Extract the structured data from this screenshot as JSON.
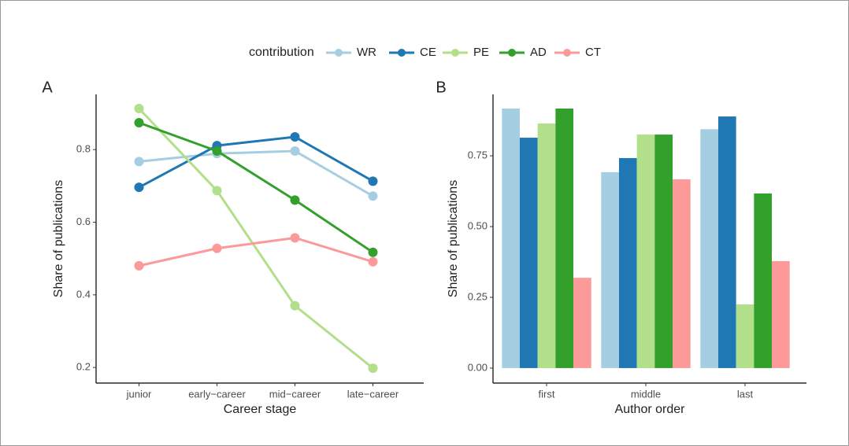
{
  "legend": {
    "title": "contribution"
  },
  "chart_data": [
    {
      "type": "line",
      "panel": "A",
      "xlabel": "Career stage",
      "ylabel": "Share of publications",
      "categories": [
        "junior",
        "early−career",
        "mid−career",
        "late−career"
      ],
      "series": [
        {
          "name": "WR",
          "color": "#a6cee3",
          "values": [
            0.767,
            0.789,
            0.796,
            0.672
          ]
        },
        {
          "name": "CE",
          "color": "#1f78b4",
          "values": [
            0.696,
            0.811,
            0.835,
            0.713
          ]
        },
        {
          "name": "PE",
          "color": "#b2df8a",
          "values": [
            0.913,
            0.687,
            0.37,
            0.198
          ]
        },
        {
          "name": "AD",
          "color": "#33a02c",
          "values": [
            0.874,
            0.796,
            0.661,
            0.517
          ]
        },
        {
          "name": "CT",
          "color": "#fb9a99",
          "values": [
            0.48,
            0.528,
            0.557,
            0.491
          ]
        }
      ],
      "ylim": [
        0.157,
        0.952
      ],
      "yticks": [
        0.2,
        0.4,
        0.6,
        0.8
      ]
    },
    {
      "type": "bar",
      "panel": "B",
      "xlabel": "Author order",
      "ylabel": "Share of publications",
      "categories": [
        "first",
        "middle",
        "last"
      ],
      "series": [
        {
          "name": "WR",
          "color": "#a6cee3",
          "values": [
            0.917,
            0.692,
            0.844
          ]
        },
        {
          "name": "CE",
          "color": "#1f78b4",
          "values": [
            0.814,
            0.742,
            0.889
          ]
        },
        {
          "name": "PE",
          "color": "#b2df8a",
          "values": [
            0.864,
            0.825,
            0.225
          ]
        },
        {
          "name": "AD",
          "color": "#33a02c",
          "values": [
            0.917,
            0.825,
            0.617
          ]
        },
        {
          "name": "CT",
          "color": "#fb9a99",
          "values": [
            0.319,
            0.667,
            0.378
          ]
        }
      ],
      "ylim": [
        -0.053,
        0.967
      ],
      "yticks": [
        {
          "value": 0,
          "label": "0.00"
        },
        {
          "value": 0.25,
          "label": "0.25"
        },
        {
          "value": 0.5,
          "label": "0.50"
        },
        {
          "value": 0.75,
          "label": "0.75"
        }
      ]
    }
  ]
}
